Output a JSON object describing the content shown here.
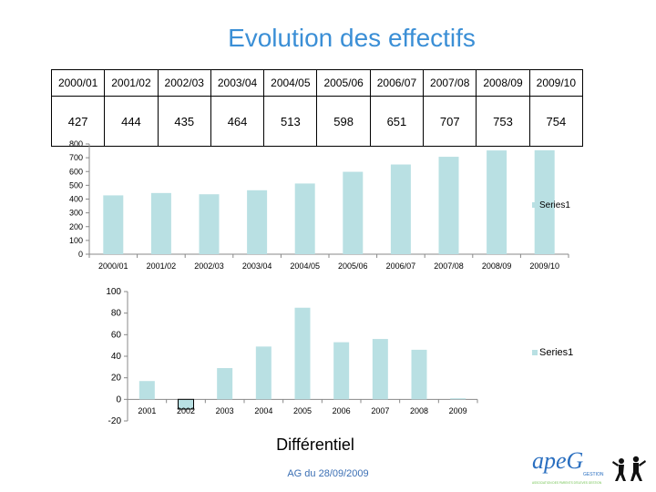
{
  "title": "Evolution des effectifs",
  "table": {
    "years": [
      "2000/01",
      "2001/02",
      "2002/03",
      "2003/04",
      "2004/05",
      "2005/06",
      "2006/07",
      "2007/08",
      "2008/09",
      "2009/10"
    ],
    "values": [
      "427",
      "444",
      "435",
      "464",
      "513",
      "598",
      "651",
      "707",
      "753",
      "754"
    ]
  },
  "footer": {
    "title": "Différentiel",
    "date": "AG du 28/09/2009"
  },
  "logo": {
    "text": "apeG",
    "subtext": "GESTION",
    "tagline": "ASSOCIATION DES PARENTS D'ELEVES GESTION",
    "accent": "#2a6fc0",
    "accent2": "#6cc04a"
  },
  "chart_data": [
    {
      "type": "bar",
      "title": "",
      "categories": [
        "2000/01",
        "2001/02",
        "2002/03",
        "2003/04",
        "2004/05",
        "2005/06",
        "2006/07",
        "2007/08",
        "2008/09",
        "2009/10"
      ],
      "series": [
        {
          "name": "Series1",
          "values": [
            427,
            444,
            435,
            464,
            513,
            598,
            651,
            707,
            753,
            754
          ]
        }
      ],
      "ylim": [
        0,
        800
      ],
      "yticks": [
        0,
        100,
        200,
        300,
        400,
        500,
        600,
        700,
        800
      ],
      "grid": false,
      "legend": "right",
      "bar_color": "#b9e0e3"
    },
    {
      "type": "bar",
      "title": "",
      "categories": [
        "2001",
        "2002",
        "2003",
        "2004",
        "2005",
        "2006",
        "2007",
        "2008",
        "2009"
      ],
      "series": [
        {
          "name": "Series1",
          "values": [
            17,
            -9,
            29,
            49,
            85,
            53,
            56,
            46,
            1
          ]
        }
      ],
      "ylim": [
        -20,
        100
      ],
      "yticks": [
        -20,
        0,
        20,
        40,
        60,
        80,
        100
      ],
      "grid": false,
      "legend": "right",
      "bar_color": "#b9e0e3"
    }
  ]
}
